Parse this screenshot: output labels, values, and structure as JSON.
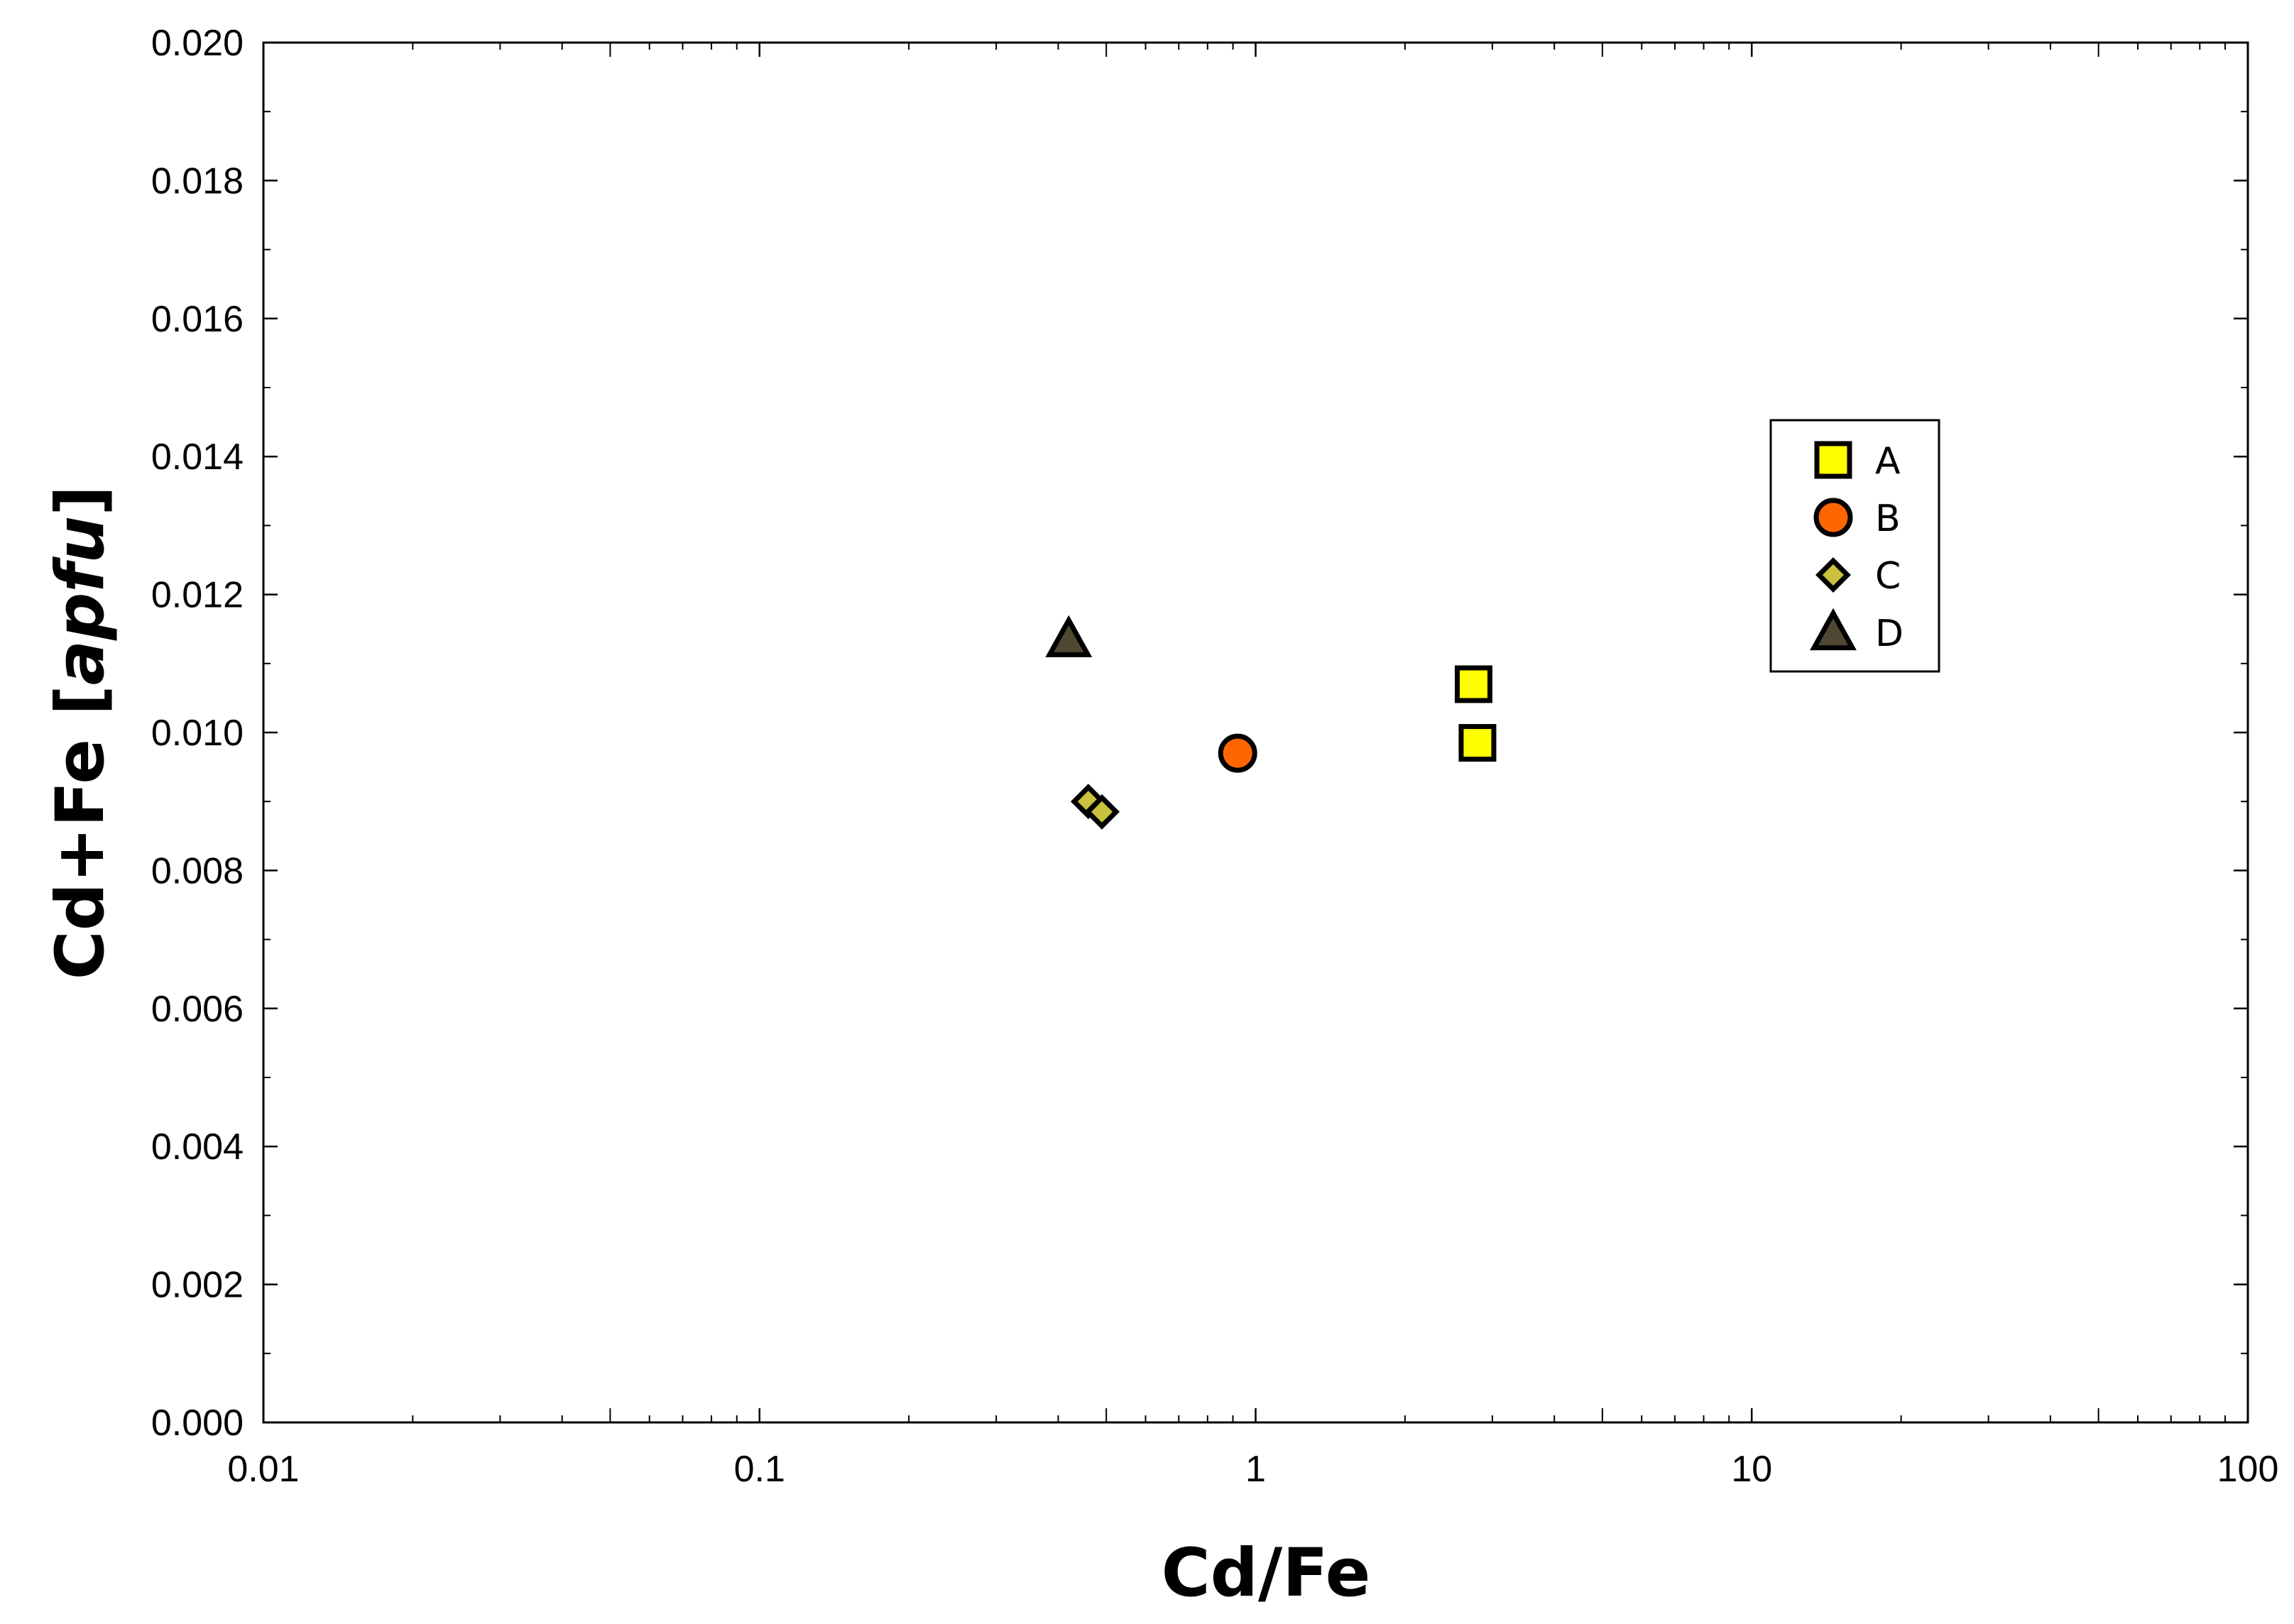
{
  "chart_data": {
    "type": "scatter",
    "title": "",
    "xlabel": "Cd/Fe",
    "ylabel_main": "Cd+Fe ",
    "ylabel_bracket_open": "[",
    "ylabel_unit": "apfu",
    "ylabel_bracket_close": "]",
    "x_scale": "log",
    "xlim": [
      0.01,
      100
    ],
    "ylim": [
      0.0,
      0.02
    ],
    "x_ticks": [
      "0.01",
      "0.1",
      "1",
      "10",
      "100"
    ],
    "y_ticks": [
      "0.000",
      "0.002",
      "0.004",
      "0.006",
      "0.008",
      "0.010",
      "0.012",
      "0.014",
      "0.016",
      "0.018",
      "0.020"
    ],
    "legend_position": "right",
    "series": [
      {
        "name": "A",
        "marker": "square",
        "color": "#ffff00",
        "points": [
          [
            2.75,
            0.0107
          ],
          [
            2.8,
            0.00985
          ]
        ]
      },
      {
        "name": "B",
        "marker": "circle",
        "color": "#ff6600",
        "points": [
          [
            0.92,
            0.0097
          ]
        ]
      },
      {
        "name": "C",
        "marker": "diamond",
        "color": "#c8c23c",
        "points": [
          [
            0.46,
            0.009
          ],
          [
            0.49,
            0.00885
          ]
        ]
      },
      {
        "name": "D",
        "marker": "triangle",
        "color": "#4f4732",
        "points": [
          [
            0.42,
            0.01135
          ]
        ]
      }
    ]
  }
}
